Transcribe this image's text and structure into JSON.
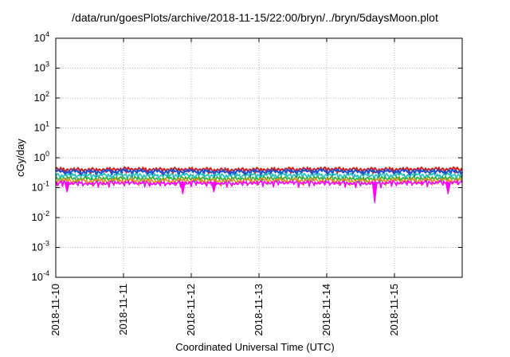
{
  "chart_data": {
    "type": "line",
    "title": "/data/run/goesPlots/archive/2018-11-15/22:00/bryn/../bryn/5daysMoon.plot",
    "xlabel": "Coordinated Universal Time (UTC)",
    "ylabel": "cGy/day",
    "yscale": "log",
    "ylim": [
      0.0001,
      10000
    ],
    "xlim": [
      "2018-11-10",
      "2018-11-16"
    ],
    "grid": true,
    "x_ticks": [
      "2018-11-10",
      "2018-11-11",
      "2018-11-12",
      "2018-11-13",
      "2018-11-14",
      "2018-11-15"
    ],
    "y_ticks": [
      {
        "base": "10",
        "exp": "-4",
        "value": 0.0001
      },
      {
        "base": "10",
        "exp": "-3",
        "value": 0.001
      },
      {
        "base": "10",
        "exp": "-2",
        "value": 0.01
      },
      {
        "base": "10",
        "exp": "-1",
        "value": 0.1
      },
      {
        "base": "10",
        "exp": "0",
        "value": 1
      },
      {
        "base": "10",
        "exp": "1",
        "value": 10
      },
      {
        "base": "10",
        "exp": "2",
        "value": 100
      },
      {
        "base": "10",
        "exp": "3",
        "value": 1000
      },
      {
        "base": "10",
        "exp": "4",
        "value": 10000
      }
    ],
    "x": [
      "2018-11-10",
      "2018-11-10T12:00",
      "2018-11-11",
      "2018-11-11T12:00",
      "2018-11-12",
      "2018-11-12T12:00",
      "2018-11-13",
      "2018-11-13T12:00",
      "2018-11-14",
      "2018-11-14T12:00",
      "2018-11-15",
      "2018-11-15T12:00",
      "2018-11-16"
    ],
    "series": [
      {
        "color": "#d62020",
        "values": [
          0.42,
          0.4,
          0.43,
          0.41,
          0.42,
          0.4,
          0.41,
          0.42,
          0.43,
          0.41,
          0.42,
          0.42,
          0.43
        ]
      },
      {
        "color": "#1f4fd6",
        "values": [
          0.36,
          0.34,
          0.37,
          0.35,
          0.36,
          0.34,
          0.35,
          0.36,
          0.37,
          0.35,
          0.36,
          0.36,
          0.35
        ]
      },
      {
        "color": "#20c0c0",
        "values": [
          0.27,
          0.26,
          0.27,
          0.26,
          0.27,
          0.26,
          0.27,
          0.27,
          0.27,
          0.26,
          0.27,
          0.27,
          0.27
        ]
      },
      {
        "color": "#30b030",
        "values": [
          0.21,
          0.2,
          0.21,
          0.2,
          0.21,
          0.2,
          0.21,
          0.21,
          0.21,
          0.2,
          0.21,
          0.21,
          0.21
        ]
      },
      {
        "color": "#e08a20",
        "values": [
          0.18,
          0.17,
          0.18,
          0.17,
          0.18,
          0.17,
          0.18,
          0.18,
          0.18,
          0.17,
          0.18,
          0.18,
          0.18
        ]
      },
      {
        "color": "#ff00ff",
        "values": [
          0.15,
          0.14,
          0.15,
          0.14,
          0.15,
          0.14,
          0.15,
          0.15,
          0.15,
          0.14,
          0.15,
          0.15,
          0.15
        ]
      }
    ],
    "magenta_dips": [
      {
        "x": "2018-11-10T04:00",
        "y": 0.07
      },
      {
        "x": "2018-11-11T21:00",
        "y": 0.06
      },
      {
        "x": "2018-11-12T08:00",
        "y": 0.07
      },
      {
        "x": "2018-11-14T17:00",
        "y": 0.03
      },
      {
        "x": "2018-11-15T19:00",
        "y": 0.06
      }
    ]
  }
}
